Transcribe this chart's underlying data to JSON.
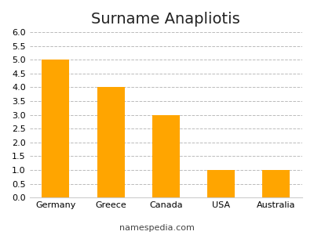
{
  "title": "Surname Anapliotis",
  "categories": [
    "Germany",
    "Greece",
    "Canada",
    "USA",
    "Australia"
  ],
  "values": [
    5,
    4,
    3,
    1,
    1
  ],
  "bar_color": "#FFA500",
  "ylim": [
    0,
    6
  ],
  "yticks": [
    0,
    0.5,
    1,
    1.5,
    2,
    2.5,
    3,
    3.5,
    4,
    4.5,
    5,
    5.5,
    6
  ],
  "grid_color": "#bbbbbb",
  "background_color": "#ffffff",
  "title_fontsize": 14,
  "tick_fontsize": 8,
  "footer_text": "namespedia.com",
  "footer_fontsize": 8,
  "bar_width": 0.5
}
